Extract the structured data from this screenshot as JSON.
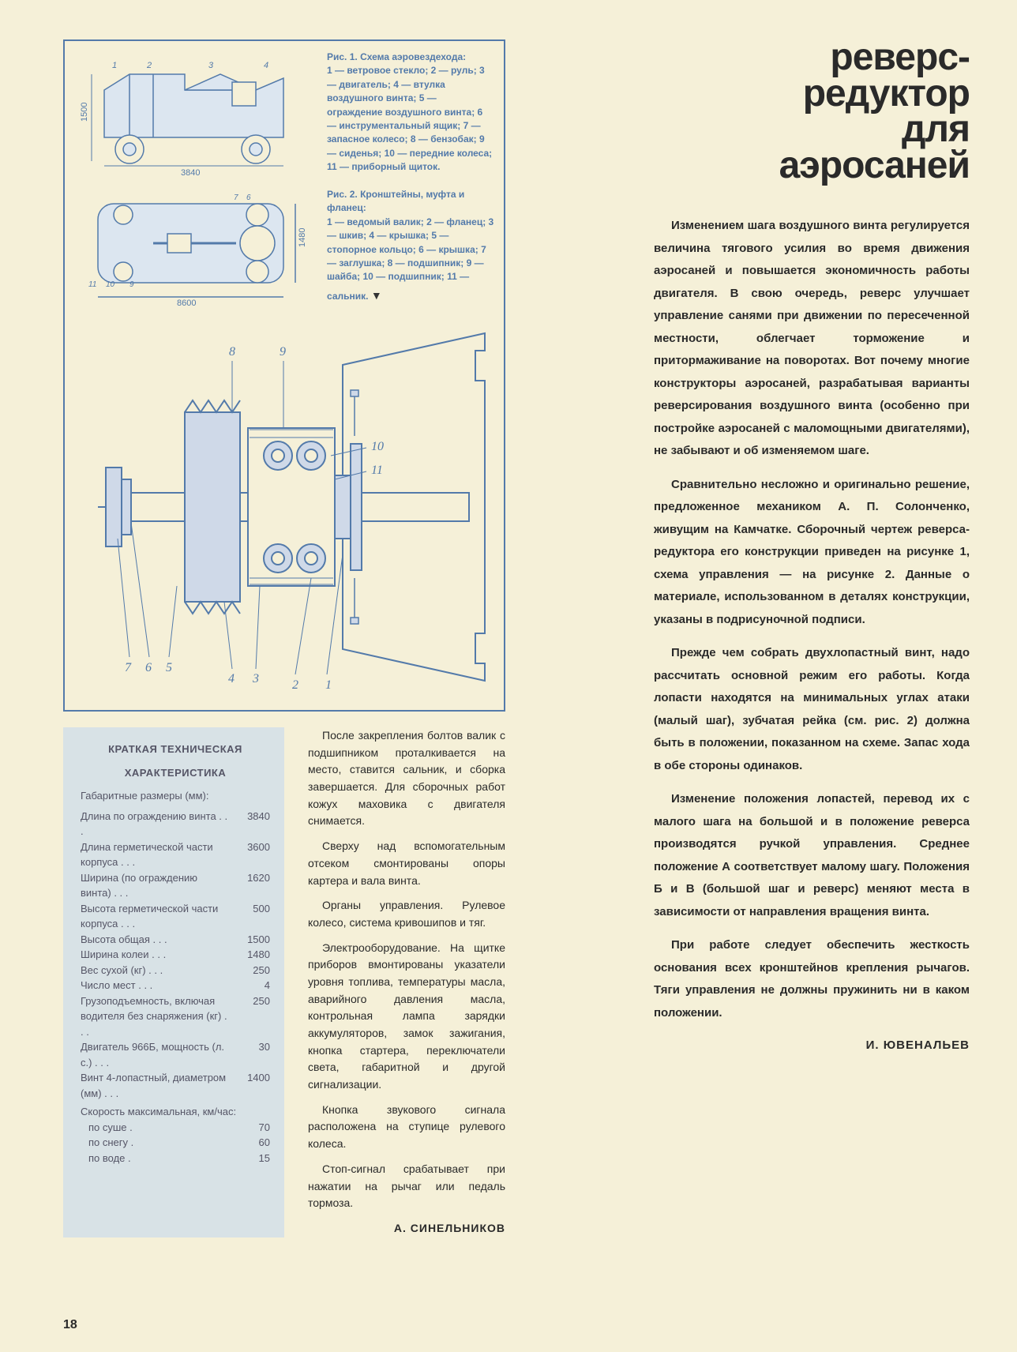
{
  "page_number": "18",
  "figure1": {
    "title": "Рис. 1. Схема аэровездехода:",
    "legend": "1 — ветровое стекло; 2 — руль; 3 — двигатель; 4 — втулка воздушного винта; 5 — ограждение воздушного винта; 6 — инструментальный ящик; 7 — запасное колесо; 8 — бензобак; 9 — сиденья; 10 — передние колеса; 11 — приборный щиток.",
    "dim_h": "1500",
    "dim_l": "3840",
    "colors": {
      "ink": "#537aaa",
      "fill": "#a5b8cc"
    }
  },
  "figure2": {
    "title": "Рис. 2. Кронштейны, муфта и фланец:",
    "legend": "1 — ведомый валик; 2 — фланец; 3 — шкив; 4 — крышка; 5 — стопорное кольцо; 6 — крышка; 7 — заглушка; 8 — подшипник; 9 — шайба; 10 — подшипник; 11 — сальник.",
    "dim_w": "1480",
    "dim_l": "8600"
  },
  "big_diagram_labels": [
    "1",
    "2",
    "3",
    "4",
    "5",
    "6",
    "7",
    "8",
    "9",
    "10",
    "11"
  ],
  "specs": {
    "title1": "КРАТКАЯ ТЕХНИЧЕСКАЯ",
    "title2": "ХАРАКТЕРИСТИКА",
    "header": "Габаритные размеры (мм):",
    "rows": [
      {
        "label": "Длина по ограждению винта",
        "val": "3840"
      },
      {
        "label": "Длина герметической части корпуса",
        "val": "3600"
      },
      {
        "label": "Ширина (по ограждению винта)",
        "val": "1620"
      },
      {
        "label": "Высота герметической части корпуса",
        "val": "500"
      },
      {
        "label": "Высота общая",
        "val": "1500"
      },
      {
        "label": "Ширина колеи",
        "val": "1480"
      },
      {
        "label": "Вес сухой (кг)",
        "val": "250"
      },
      {
        "label": "Число мест",
        "val": "4"
      },
      {
        "label": "Грузоподъемность, включая водителя без снаряжения (кг)",
        "val": "250"
      },
      {
        "label": "Двигатель 966Б, мощность (л. с.)",
        "val": "30"
      },
      {
        "label": "Винт 4-лопастный, диаметром (мм)",
        "val": "1400"
      }
    ],
    "speed_label": "Скорость максимальная, км/час:",
    "speeds": [
      {
        "label": "по суше",
        "val": "70"
      },
      {
        "label": "по снегу",
        "val": "60"
      },
      {
        "label": "по воде",
        "val": "15"
      }
    ]
  },
  "mid_column": {
    "p1": "После закрепления болтов валик с подшипником проталкивается на место, ставится сальник, и сборка завершается. Для сборочных работ кожух маховика с двигателя снимается.",
    "p2": "Сверху над вспомогательным отсеком смонтированы опоры картера и вала винта.",
    "p3": "Органы управления. Рулевое колесо, система кривошипов и тяг.",
    "p4": "Электрооборудование. На щитке приборов вмонтированы указатели уровня топлива, температуры масла, аварийного давления масла, контрольная лампа зарядки аккумуляторов, замок зажигания, кнопка стартера, переключатели света, габаритной и другой сигнализации.",
    "p5": "Кнопка звукового сигнала расположена на ступице рулевого колеса.",
    "p6": "Стоп-сигнал срабатывает при нажатии на рычаг или педаль тормоза.",
    "author": "А. СИНЕЛЬНИКОВ"
  },
  "article": {
    "title_l1": "реверс-",
    "title_l2": "редуктор",
    "title_l3": "для",
    "title_l4": "аэросаней",
    "p1": "Изменением шага воздушного винта регулируется величина тягового усилия во время движения аэросаней и повышается экономичность работы двигателя. В свою очередь, реверс улучшает управление санями при движении по пересеченной местности, облегчает торможение и притормаживание на поворотах. Вот почему многие конструкторы аэросаней, разрабатывая варианты реверсирования воздушного винта (особенно при постройке аэросаней с маломощными двигателями), не забывают и об изменяемом шаге.",
    "p2": "Сравнительно несложно и оригинально решение, предложенное механиком А. П. Солонченко, живущим на Камчатке. Сборочный чертеж реверса-редуктора его конструкции приведен на рисунке 1, схема управления — на рисунке 2. Данные о материале, использованном в деталях конструкции, указаны в подрисуночной подписи.",
    "p3": "Прежде чем собрать двухлопастный винт, надо рассчитать основной режим его работы. Когда лопасти находятся на минимальных углах атаки (малый шаг), зубчатая рейка (см. рис. 2) должна быть в положении, показанном на схеме. Запас хода в обе стороны одинаков.",
    "p4": "Изменение положения лопастей, перевод их с малого шага на большой и в положение реверса производятся ручкой управления. Среднее положение А соответствует малому шагу. Положения Б и В (большой шаг и реверс) меняют места в зависимости от направления вращения винта.",
    "p5": "При работе следует обеспечить жесткость основания всех кронштейнов крепления рычагов. Тяги управления не должны пружинить ни в каком положении.",
    "author": "И. ЮВЕНАЛЬЕВ"
  }
}
